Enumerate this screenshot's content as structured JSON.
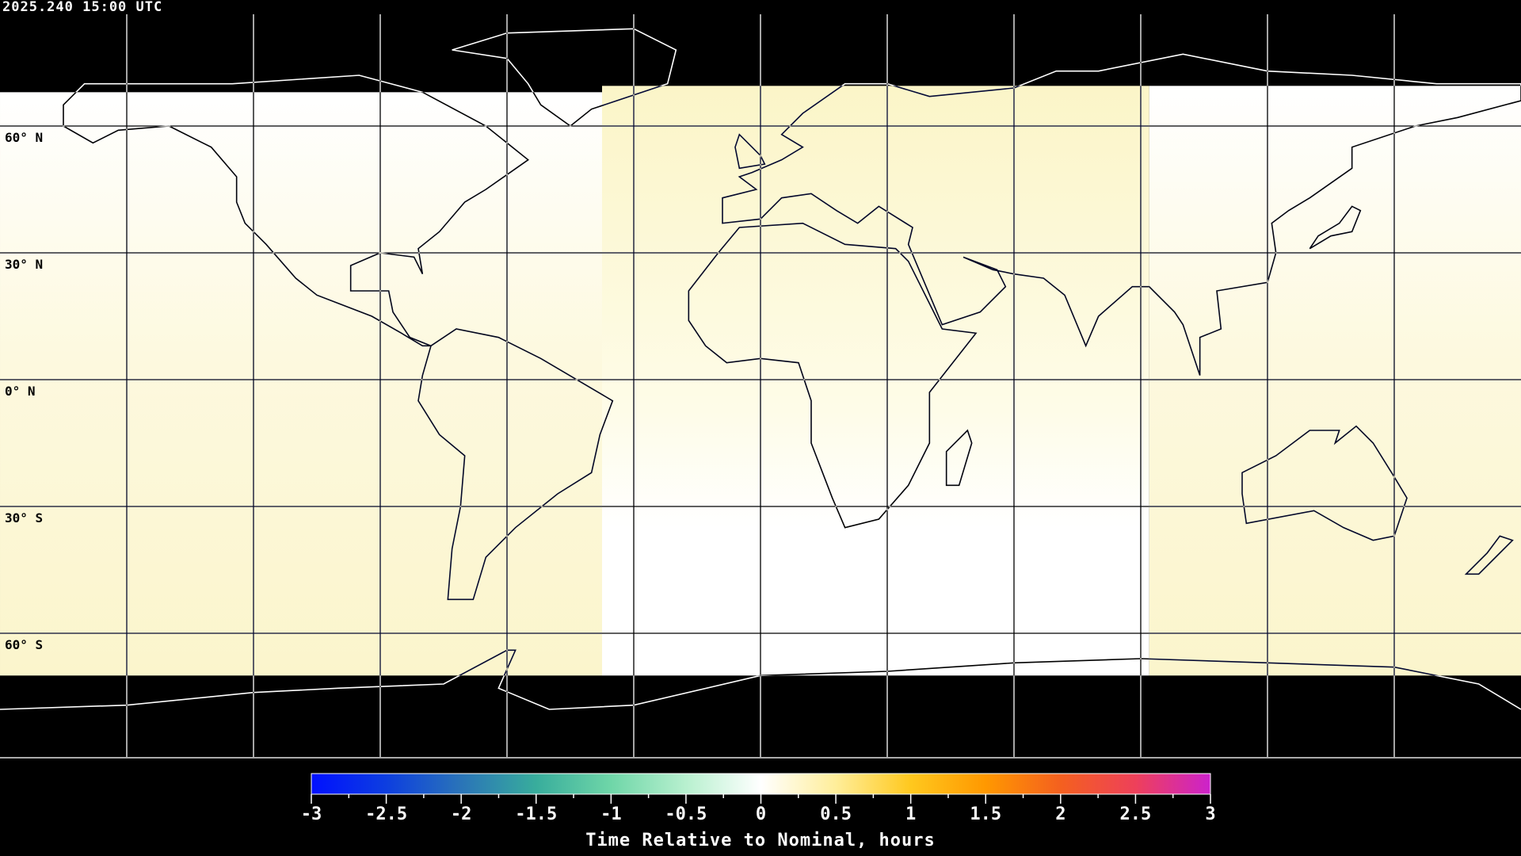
{
  "header": {
    "timestamp": "2025.240 15:00 UTC"
  },
  "map": {
    "projection": "equirectangular",
    "graticule_step_deg": 30,
    "lat_labels": [
      "60° N",
      "30° N",
      "0° N",
      "30° S",
      "60° S"
    ],
    "no_data_color": "#000000",
    "regions": [
      {
        "name": "west",
        "lon_range": [
          -180,
          -37.5
        ],
        "lat_range": [
          -70,
          68
        ],
        "value_top": 0.0,
        "value_bottom": 0.3
      },
      {
        "name": "center",
        "lon_range": [
          -37.5,
          92
        ],
        "lat_range": [
          -70,
          69.5
        ],
        "value_top": 0.3,
        "value_bottom": 0.0
      },
      {
        "name": "east",
        "lon_range": [
          92,
          180
        ],
        "lat_range": [
          -70,
          69.5
        ],
        "value_top": 0.0,
        "value_bottom": 0.3
      }
    ]
  },
  "colorbar": {
    "title": "Time Relative to Nominal, hours",
    "min": -3,
    "max": 3,
    "tick_labels": [
      "-3",
      "-2.5",
      "-2",
      "-1.5",
      "-1",
      "-0.5",
      "0",
      "0.5",
      "1",
      "1.5",
      "2",
      "2.5",
      "3"
    ],
    "stops": [
      {
        "v": -3,
        "color": "#0010ff"
      },
      {
        "v": -2.5,
        "color": "#0d3ee0"
      },
      {
        "v": -2,
        "color": "#2a74b8"
      },
      {
        "v": -1.5,
        "color": "#38ad9c"
      },
      {
        "v": -1,
        "color": "#6fd6a8"
      },
      {
        "v": -0.5,
        "color": "#b8f0cf"
      },
      {
        "v": 0,
        "color": "#ffffff"
      },
      {
        "v": 0.5,
        "color": "#ffee9a"
      },
      {
        "v": 1,
        "color": "#ffc81e"
      },
      {
        "v": 1.5,
        "color": "#ff9800"
      },
      {
        "v": 2,
        "color": "#f4601f"
      },
      {
        "v": 2.5,
        "color": "#ee405a"
      },
      {
        "v": 3,
        "color": "#cc22cc"
      }
    ]
  }
}
